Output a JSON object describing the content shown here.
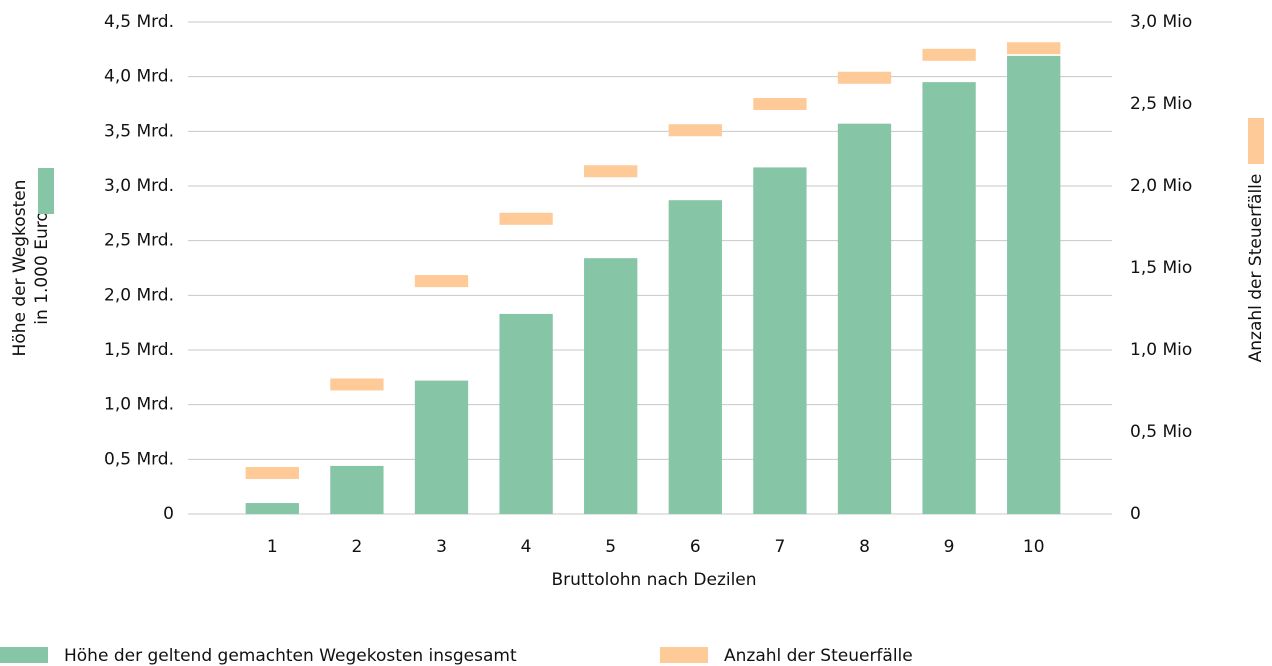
{
  "chart_data": {
    "type": "bar_marker",
    "y_label": [
      "Höhe der Wegkosten",
      "in 1.000 Euro"
    ],
    "y2_label": "Anzahl der Steuerfälle",
    "x_label": "Bruttolohn nach Dezilen",
    "categories": [
      "1",
      "2",
      "3",
      "4",
      "5",
      "6",
      "7",
      "8",
      "9",
      "10"
    ],
    "series": [
      {
        "name": "Höhe der geltend gemachten Wegekosten insgesamt",
        "color": "#86c5a6",
        "values": [
          0.1,
          0.44,
          1.22,
          1.83,
          2.34,
          2.87,
          3.17,
          3.57,
          3.95,
          4.19
        ]
      },
      {
        "name": "Anzahl der Steuerfälle",
        "color": "#fdca98",
        "axis": "y2",
        "values": [
          0.25,
          0.79,
          1.42,
          1.8,
          2.09,
          2.34,
          2.5,
          2.66,
          2.8,
          2.84
        ]
      }
    ],
    "ylim": [
      0,
      4.5
    ],
    "yticks": [
      0,
      {
        "value": 0.5,
        "label": "0,5 Mrd."
      },
      {
        "value": 1.0,
        "label": "1,0 Mrd."
      },
      {
        "value": 1.5,
        "label": "1,5 Mrd."
      },
      {
        "value": 2.0,
        "label": "2,0 Mrd."
      },
      {
        "value": 2.5,
        "label": "2,5 Mrd."
      },
      {
        "value": 3.0,
        "label": "3,0 Mrd."
      },
      {
        "value": 3.5,
        "label": "3,5 Mrd."
      },
      {
        "value": 4.0,
        "label": "4,0 Mrd."
      },
      {
        "value": 4.5,
        "label": "4,5 Mrd."
      }
    ],
    "y2lim": [
      0,
      3.0
    ],
    "y2ticks": [
      0,
      {
        "value": 0.5,
        "label": "0,5 Mio"
      },
      {
        "value": 1.0,
        "label": "1,0 Mio"
      },
      {
        "value": 1.5,
        "label": "1,5 Mio"
      },
      {
        "value": 2.0,
        "label": "2,0 Mio"
      },
      {
        "value": 2.5,
        "label": "2,5 Mio"
      },
      {
        "value": 3.0,
        "label": "3,0 Mio"
      }
    ],
    "grid": true
  }
}
